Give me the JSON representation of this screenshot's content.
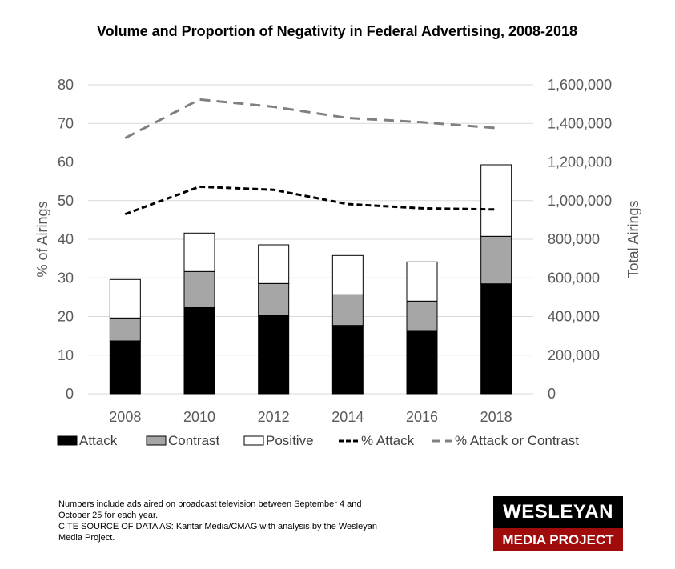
{
  "chart_data": {
    "type": "bar",
    "subtype": "stacked-bar-with-lines",
    "title": "Volume and Proportion of Negativity in Federal Advertising, 2008-2018",
    "categories": [
      "2008",
      "2010",
      "2012",
      "2014",
      "2016",
      "2018"
    ],
    "ylabel_left": "% of Airings",
    "ylabel_right": "Total Airings",
    "ylim_left": [
      0,
      80
    ],
    "ylim_right": [
      0,
      1600000
    ],
    "yticks_left": [
      "0",
      "10",
      "20",
      "30",
      "40",
      "50",
      "60",
      "70",
      "80"
    ],
    "yticks_right": [
      "0",
      "200,000",
      "400,000",
      "600,000",
      "800,000",
      "1,000,000",
      "1,200,000",
      "1,400,000",
      "1,600,000"
    ],
    "grid": true,
    "legend_position": "bottom",
    "bar_series": [
      {
        "name": "Attack",
        "color": "#000000",
        "axis": "right",
        "values": [
          273600,
          447700,
          406200,
          353600,
          327500,
          569100
        ]
      },
      {
        "name": "Contrast",
        "color": "#a6a6a6",
        "axis": "right",
        "values": [
          118900,
          185200,
          164500,
          159100,
          152100,
          246200
        ]
      },
      {
        "name": "Positive",
        "color": "#ffffff",
        "axis": "right",
        "values": [
          199000,
          199000,
          200300,
          203100,
          203100,
          370200
        ]
      }
    ],
    "line_series": [
      {
        "name": "% Attack",
        "color": "#000000",
        "style": "dash",
        "axis": "left",
        "values": [
          46.5,
          53.6,
          52.8,
          49.1,
          48.0,
          47.7
        ]
      },
      {
        "name": "% Attack or Contrast",
        "color": "#808080",
        "style": "long-dash",
        "axis": "left",
        "values": [
          66.2,
          76.2,
          74.3,
          71.4,
          70.3,
          68.8
        ]
      }
    ],
    "legend": [
      "Attack",
      "Contrast",
      "Positive",
      "% Attack",
      "% Attack or Contrast"
    ]
  },
  "footnote": {
    "lines": [
      "Numbers  include ads aired on broadcast television between  September  4 and",
      "October 25 for each year.",
      "CITE SOURCE  OF DATA  AS:  Kantar Media/CMAG  with analysis by the Wesleyan",
      "Media Project."
    ]
  },
  "logo": {
    "top_text": "WESLEYAN",
    "bottom_text": "MEDIA PROJECT"
  }
}
